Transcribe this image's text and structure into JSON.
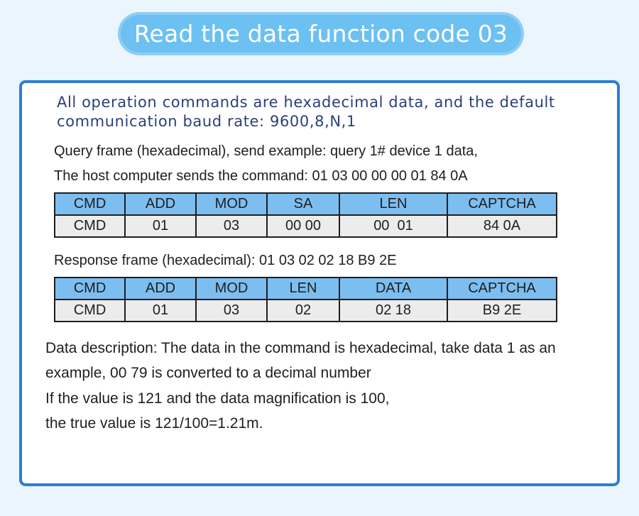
{
  "title": "Read the data function code 03",
  "intro": "All operation commands are hexadecimal data, and the default communication baud rate: 9600,8,N,1",
  "query": {
    "line1": "Query frame (hexadecimal), send example: query 1# device 1 data,",
    "line2": "The host computer sends the command: 01 03 00 00 00 01 84 0A",
    "headers": [
      "CMD",
      "ADD",
      "MOD",
      "SA",
      "LEN",
      "CAPTCHA"
    ],
    "values": [
      "CMD",
      "01",
      "03",
      "00 00",
      "00  01",
      "84 0A"
    ]
  },
  "response": {
    "line": "Response frame (hexadecimal): 01 03 02 02 18 B9 2E",
    "headers": [
      "CMD",
      "ADD",
      "MOD",
      "LEN",
      "DATA",
      "CAPTCHA"
    ],
    "values": [
      "CMD",
      "01",
      "03",
      "02",
      "02 18",
      "B9 2E"
    ]
  },
  "description": [
    "Data description: The data in the command is hexadecimal, take data 1 as an",
    "example, 00 79 is converted to a decimal number",
    "If the value is 121 and the data magnification is 100,",
    "the true value is 121/100=1.21m."
  ]
}
